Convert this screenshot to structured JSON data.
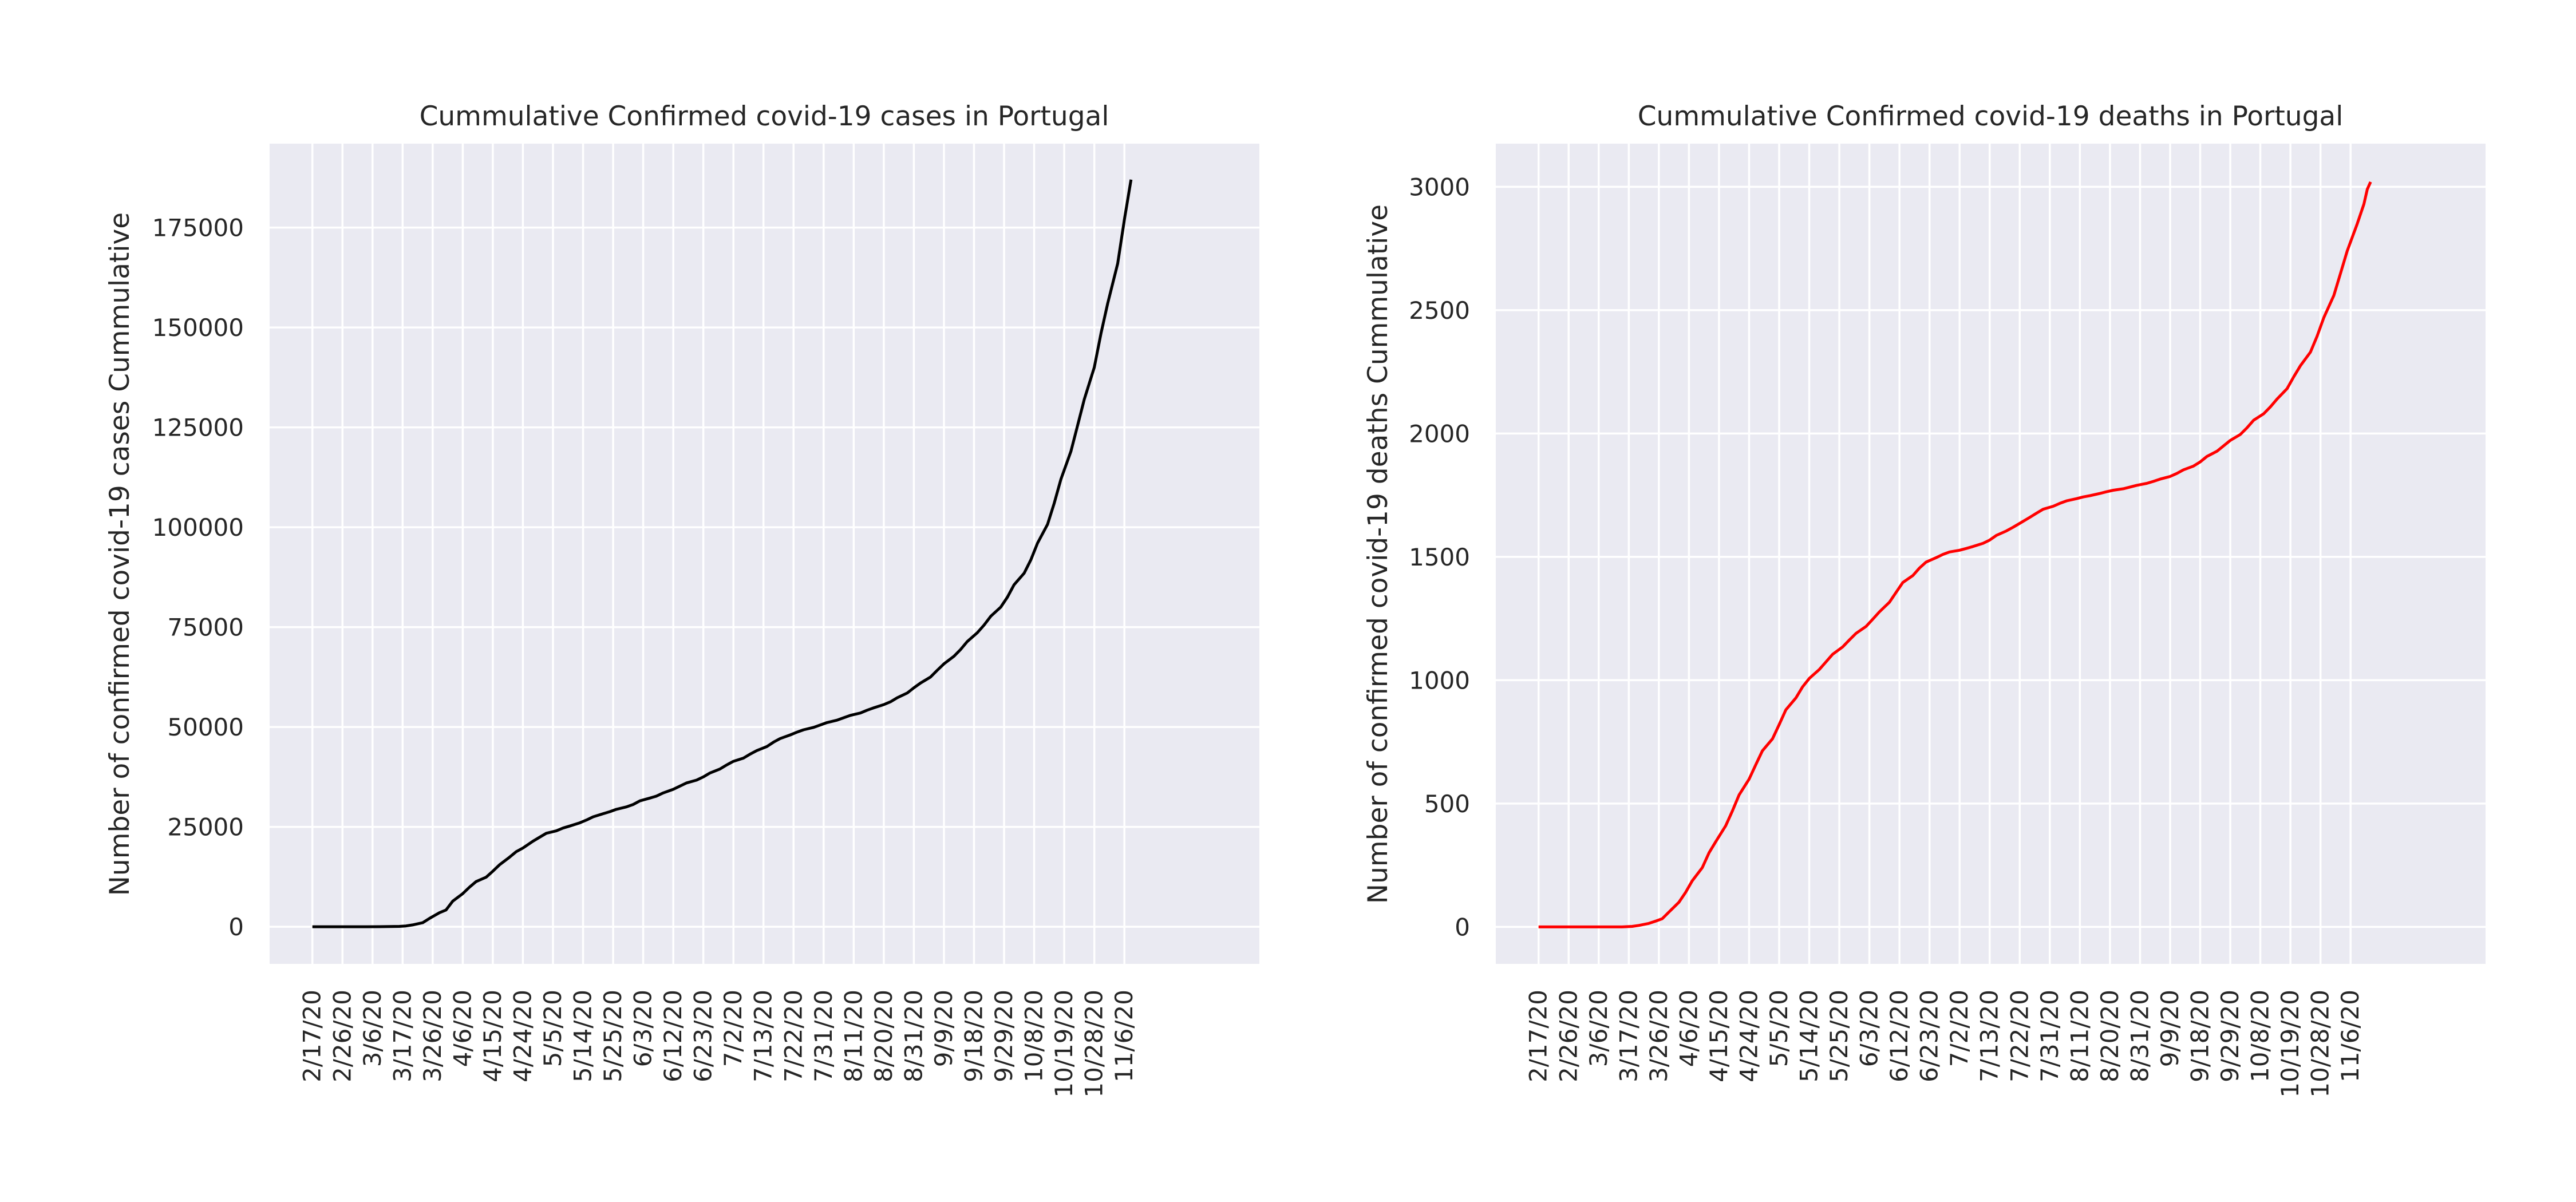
{
  "chart_data": [
    {
      "type": "line",
      "title": "Cummulative Confirmed covid-19 cases in Portugal",
      "xlabel": "",
      "ylabel": "Number of confirmed covid-19 cases Cummulative",
      "ylim": [
        -9300,
        196000
      ],
      "yticks": [
        0,
        25000,
        50000,
        75000,
        100000,
        125000,
        150000,
        175000
      ],
      "xlim": [
        -12.8,
        283.4
      ],
      "grid": true,
      "line_color": "#000000",
      "x_tick_labels": [
        "2/17/20",
        "2/26/20",
        "3/6/20",
        "3/17/20",
        "3/26/20",
        "4/6/20",
        "4/15/20",
        "4/24/20",
        "5/5/20",
        "5/14/20",
        "5/25/20",
        "6/3/20",
        "6/12/20",
        "6/23/20",
        "7/2/20",
        "7/13/20",
        "7/22/20",
        "7/31/20",
        "8/11/20",
        "8/20/20",
        "8/31/20",
        "9/9/20",
        "9/18/20",
        "9/29/20",
        "10/8/20",
        "10/19/20",
        "10/28/20",
        "11/6/20"
      ],
      "points": [
        [
          0,
          0
        ],
        [
          13,
          0
        ],
        [
          16,
          2
        ],
        [
          20,
          10
        ],
        [
          23,
          40
        ],
        [
          26,
          80
        ],
        [
          28,
          200
        ],
        [
          30,
          450
        ],
        [
          33,
          1000
        ],
        [
          35,
          2060
        ],
        [
          38,
          3500
        ],
        [
          40,
          4200
        ],
        [
          42,
          6400
        ],
        [
          45,
          8300
        ],
        [
          47,
          9900
        ],
        [
          49,
          11300
        ],
        [
          52,
          12400
        ],
        [
          54,
          13900
        ],
        [
          56,
          15500
        ],
        [
          59,
          17400
        ],
        [
          61,
          18800
        ],
        [
          63,
          19700
        ],
        [
          66,
          21400
        ],
        [
          68,
          22400
        ],
        [
          70,
          23400
        ],
        [
          73,
          24000
        ],
        [
          75,
          24700
        ],
        [
          77,
          25200
        ],
        [
          80,
          26000
        ],
        [
          82,
          26700
        ],
        [
          84,
          27500
        ],
        [
          87,
          28300
        ],
        [
          89,
          28800
        ],
        [
          91,
          29400
        ],
        [
          94,
          30000
        ],
        [
          96,
          30600
        ],
        [
          98,
          31500
        ],
        [
          101,
          32200
        ],
        [
          103,
          32700
        ],
        [
          105,
          33500
        ],
        [
          108,
          34400
        ],
        [
          110,
          35200
        ],
        [
          112,
          36000
        ],
        [
          115,
          36700
        ],
        [
          117,
          37500
        ],
        [
          119,
          38500
        ],
        [
          122,
          39500
        ],
        [
          124,
          40500
        ],
        [
          126,
          41400
        ],
        [
          129,
          42200
        ],
        [
          131,
          43200
        ],
        [
          133,
          44100
        ],
        [
          136,
          45100
        ],
        [
          138,
          46200
        ],
        [
          140,
          47100
        ],
        [
          143,
          48000
        ],
        [
          145,
          48700
        ],
        [
          147,
          49300
        ],
        [
          150,
          49900
        ],
        [
          152,
          50500
        ],
        [
          154,
          51100
        ],
        [
          157,
          51700
        ],
        [
          159,
          52300
        ],
        [
          161,
          52900
        ],
        [
          164,
          53500
        ],
        [
          166,
          54200
        ],
        [
          168,
          54800
        ],
        [
          171,
          55600
        ],
        [
          173,
          56300
        ],
        [
          175,
          57300
        ],
        [
          178,
          58500
        ],
        [
          180,
          59800
        ],
        [
          182,
          61000
        ],
        [
          185,
          62500
        ],
        [
          187,
          64200
        ],
        [
          189,
          65800
        ],
        [
          192,
          67700
        ],
        [
          194,
          69400
        ],
        [
          196,
          71400
        ],
        [
          199,
          73600
        ],
        [
          201,
          75500
        ],
        [
          203,
          77700
        ],
        [
          206,
          80000
        ],
        [
          208,
          82500
        ],
        [
          210,
          85600
        ],
        [
          213,
          88500
        ],
        [
          215,
          91800
        ],
        [
          217,
          96000
        ],
        [
          220,
          100700
        ],
        [
          222,
          106000
        ],
        [
          224,
          112000
        ],
        [
          227,
          119000
        ],
        [
          229,
          125500
        ],
        [
          231,
          132000
        ],
        [
          234,
          140000
        ],
        [
          236,
          148500
        ],
        [
          238,
          156000
        ],
        [
          241,
          166000
        ],
        [
          243,
          177000
        ],
        [
          245,
          187000
        ]
      ]
    },
    {
      "type": "line",
      "title": "Cummulative Confirmed covid-19 deaths in Portugal",
      "xlabel": "",
      "ylabel": "Number of confirmed covid-19 deaths Cummulative",
      "ylim": [
        -150,
        3175
      ],
      "yticks": [
        0,
        500,
        1000,
        1500,
        2000,
        2500,
        3000
      ],
      "xlim": [
        -12.8,
        283.4
      ],
      "grid": true,
      "line_color": "#ff0000",
      "x_tick_labels": [
        "2/17/20",
        "2/26/20",
        "3/6/20",
        "3/17/20",
        "3/26/20",
        "4/6/20",
        "4/15/20",
        "4/24/20",
        "5/5/20",
        "5/14/20",
        "5/25/20",
        "6/3/20",
        "6/12/20",
        "6/23/20",
        "7/2/20",
        "7/13/20",
        "7/22/20",
        "7/31/20",
        "8/11/20",
        "8/20/20",
        "8/31/20",
        "9/9/20",
        "9/18/20",
        "9/29/20",
        "10/8/20",
        "10/19/20",
        "10/28/20",
        "11/6/20"
      ],
      "points": [
        [
          0,
          0
        ],
        [
          25,
          0
        ],
        [
          28,
          2
        ],
        [
          30,
          6
        ],
        [
          33,
          14
        ],
        [
          35,
          23
        ],
        [
          37,
          33
        ],
        [
          39,
          60
        ],
        [
          42,
          100
        ],
        [
          44,
          140
        ],
        [
          46,
          187
        ],
        [
          49,
          240
        ],
        [
          51,
          300
        ],
        [
          53,
          345
        ],
        [
          56,
          410
        ],
        [
          58,
          470
        ],
        [
          60,
          535
        ],
        [
          63,
          599
        ],
        [
          65,
          657
        ],
        [
          67,
          714
        ],
        [
          70,
          762
        ],
        [
          72,
          820
        ],
        [
          74,
          880
        ],
        [
          77,
          928
        ],
        [
          79,
          973
        ],
        [
          81,
          1007
        ],
        [
          84,
          1043
        ],
        [
          86,
          1074
        ],
        [
          88,
          1105
        ],
        [
          91,
          1135
        ],
        [
          93,
          1163
        ],
        [
          95,
          1190
        ],
        [
          98,
          1218
        ],
        [
          100,
          1247
        ],
        [
          102,
          1277
        ],
        [
          105,
          1316
        ],
        [
          107,
          1356
        ],
        [
          109,
          1396
        ],
        [
          112,
          1424
        ],
        [
          114,
          1455
        ],
        [
          116,
          1479
        ],
        [
          119,
          1497
        ],
        [
          121,
          1510
        ],
        [
          123,
          1520
        ],
        [
          126,
          1527
        ],
        [
          128,
          1534
        ],
        [
          130,
          1542
        ],
        [
          133,
          1555
        ],
        [
          135,
          1568
        ],
        [
          137,
          1587
        ],
        [
          140,
          1605
        ],
        [
          142,
          1620
        ],
        [
          144,
          1636
        ],
        [
          147,
          1660
        ],
        [
          149,
          1677
        ],
        [
          151,
          1693
        ],
        [
          154,
          1705
        ],
        [
          156,
          1717
        ],
        [
          158,
          1727
        ],
        [
          161,
          1736
        ],
        [
          163,
          1743
        ],
        [
          165,
          1748
        ],
        [
          168,
          1757
        ],
        [
          170,
          1764
        ],
        [
          172,
          1770
        ],
        [
          175,
          1776
        ],
        [
          177,
          1783
        ],
        [
          179,
          1790
        ],
        [
          182,
          1798
        ],
        [
          184,
          1806
        ],
        [
          186,
          1815
        ],
        [
          189,
          1826
        ],
        [
          191,
          1838
        ],
        [
          193,
          1853
        ],
        [
          196,
          1868
        ],
        [
          198,
          1885
        ],
        [
          200,
          1907
        ],
        [
          203,
          1928
        ],
        [
          205,
          1950
        ],
        [
          207,
          1972
        ],
        [
          210,
          1996
        ],
        [
          212,
          2023
        ],
        [
          214,
          2054
        ],
        [
          217,
          2080
        ],
        [
          219,
          2108
        ],
        [
          221,
          2140
        ],
        [
          224,
          2182
        ],
        [
          226,
          2230
        ],
        [
          228,
          2275
        ],
        [
          231,
          2330
        ],
        [
          233,
          2395
        ],
        [
          235,
          2470
        ],
        [
          238,
          2560
        ],
        [
          240,
          2650
        ],
        [
          242,
          2740
        ],
        [
          245,
          2850
        ],
        [
          247,
          2930
        ],
        [
          248,
          2990
        ],
        [
          249,
          3020
        ]
      ]
    }
  ]
}
